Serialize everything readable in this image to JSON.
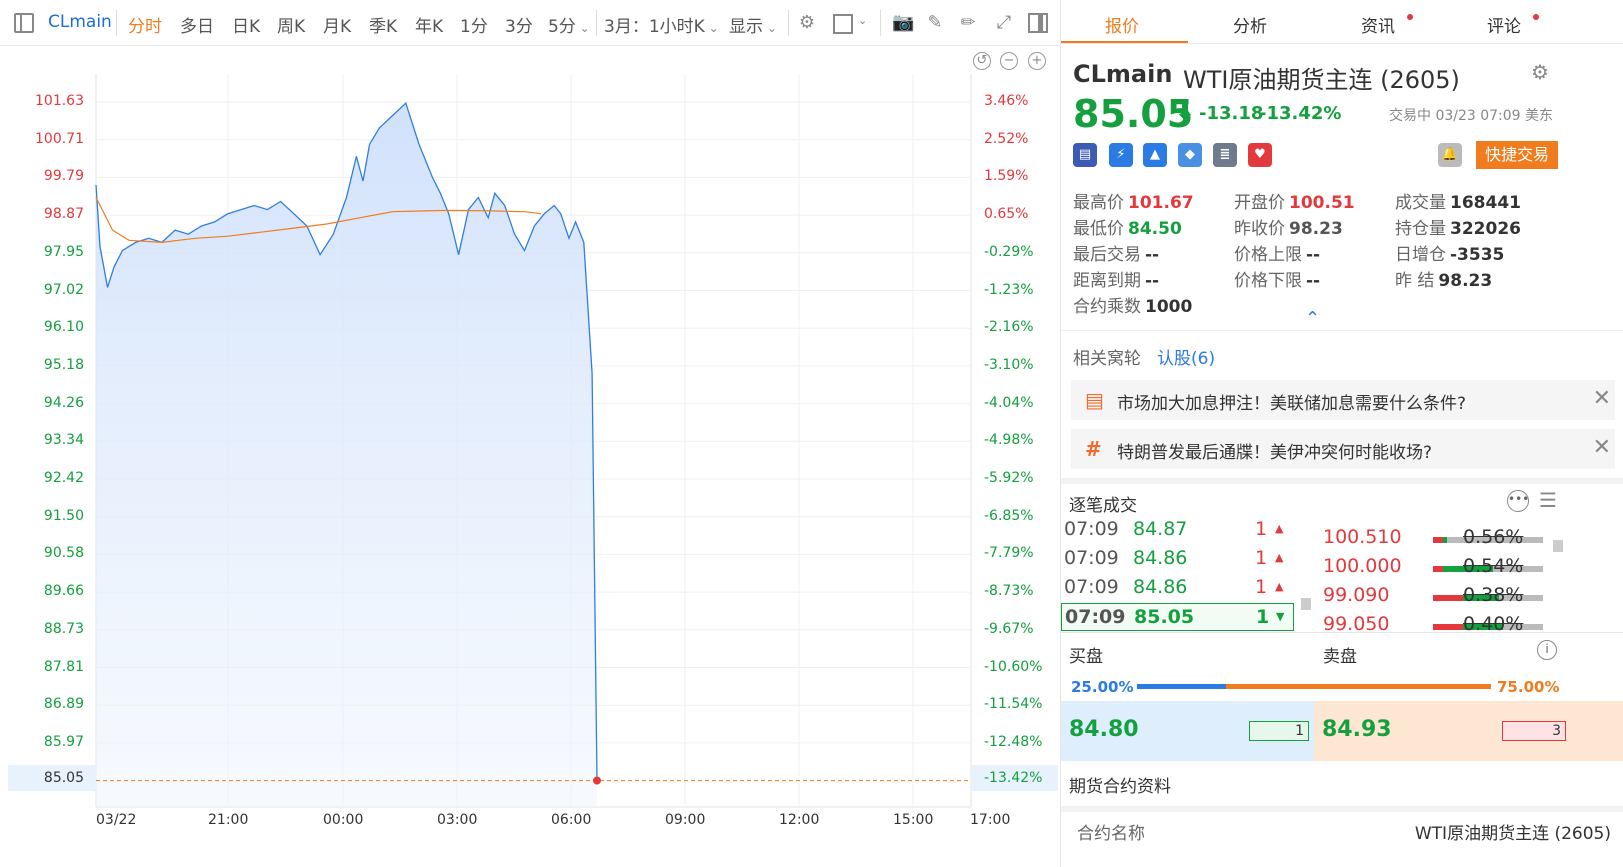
{
  "toolbar": {
    "symbol": "CLmain",
    "tabs": [
      "分时",
      "多日",
      "日K",
      "周K",
      "月K",
      "季K",
      "年K",
      "1分",
      "3分",
      "5分"
    ],
    "contract": "3月：1小时K",
    "display": "显示"
  },
  "chart_data": {
    "type": "line",
    "title": "",
    "y_labels_left": [
      "101.63",
      "100.71",
      "99.79",
      "98.87",
      "97.95",
      "97.02",
      "96.10",
      "95.18",
      "94.26",
      "93.34",
      "92.42",
      "91.50",
      "90.58",
      "89.66",
      "88.73",
      "87.81",
      "86.89",
      "85.97"
    ],
    "y_labels_right": [
      "3.46%",
      "2.52%",
      "1.59%",
      "0.65%",
      "-0.29%",
      "-1.23%",
      "-2.16%",
      "-3.10%",
      "-4.04%",
      "-4.98%",
      "-5.92%",
      "-6.85%",
      "-7.79%",
      "-8.73%",
      "-9.67%",
      "-10.60%",
      "-11.54%",
      "-12.48%"
    ],
    "current_price_label": "85.05",
    "current_pct_label": "-13.42%",
    "x_labels": [
      "03/22",
      "21:00",
      "00:00",
      "03:00",
      "06:00",
      "09:00",
      "12:00",
      "15:00",
      "17:00"
    ],
    "ylim": [
      84.6,
      102.1
    ],
    "xlim": [
      0,
      24
    ],
    "price_series": {
      "name": "价格",
      "x": [
        0,
        0.12,
        0.35,
        0.55,
        0.8,
        1.2,
        1.6,
        2.0,
        2.4,
        2.8,
        3.2,
        3.6,
        4.0,
        4.4,
        4.8,
        5.2,
        5.6,
        6.0,
        6.4,
        6.8,
        7.2,
        7.6,
        7.9,
        8.1,
        8.3,
        8.6,
        9.0,
        9.4,
        9.8,
        10.0,
        10.2,
        10.45,
        10.7,
        11.0,
        11.3,
        11.6,
        11.9,
        12.1,
        12.4,
        12.7,
        13.0,
        13.3,
        13.6,
        13.9,
        14.1,
        14.35,
        14.55,
        14.8,
        15.05,
        15.2
      ],
      "y": [
        99.6,
        98.1,
        97.1,
        97.6,
        98.0,
        98.2,
        98.3,
        98.2,
        98.5,
        98.4,
        98.6,
        98.7,
        98.9,
        99.0,
        99.1,
        99.0,
        99.2,
        98.9,
        98.6,
        97.9,
        98.4,
        99.3,
        100.3,
        99.7,
        100.6,
        101.0,
        101.3,
        101.6,
        100.6,
        100.2,
        99.8,
        99.4,
        98.9,
        97.9,
        99.0,
        99.3,
        98.8,
        99.4,
        99.1,
        98.4,
        98.0,
        98.6,
        98.9,
        99.1,
        98.9,
        98.3,
        98.7,
        98.2,
        95.0,
        85.05
      ]
    },
    "avg_series": {
      "name": "均价",
      "x": [
        0,
        0.5,
        1.0,
        2.0,
        3.0,
        4.0,
        5.0,
        6.0,
        7.0,
        8.0,
        9.0,
        10.0,
        10.5,
        11.0,
        12.0,
        13.0,
        13.5
      ],
      "y": [
        99.3,
        98.5,
        98.25,
        98.2,
        98.3,
        98.35,
        98.45,
        98.55,
        98.65,
        98.8,
        98.95,
        98.97,
        98.98,
        98.98,
        98.97,
        98.95,
        98.9
      ]
    }
  },
  "quote_tabs": [
    {
      "label": "报价",
      "dot": false
    },
    {
      "label": "分析",
      "dot": false
    },
    {
      "label": "资讯",
      "dot": true
    },
    {
      "label": "评论",
      "dot": true
    }
  ],
  "quote": {
    "symbol": "CLmain",
    "name": "WTI原油期货主连 (2605)",
    "price": "85.05",
    "change": "-13.18",
    "change_pct": "-13.42%",
    "status": "交易中 03/23 07:09 美东",
    "quick_trade": "快捷交易",
    "stats": {
      "high_label": "最高价",
      "high": "101.67",
      "open_label": "开盘价",
      "open": "100.51",
      "volume_label": "成交量",
      "volume": "168441",
      "low_label": "最低价",
      "low": "84.50",
      "prev_close_label": "昨收价",
      "prev_close": "98.23",
      "oi_label": "持仓量",
      "oi": "322026",
      "last_trade_label": "最后交易",
      "last_trade": "--",
      "upper_label": "价格上限",
      "upper": "--",
      "daily_oi_label": "日增仓",
      "daily_oi": "-3535",
      "expiry_label": "距离到期",
      "expiry": "--",
      "lower_label": "价格下限",
      "lower": "--",
      "prev_settle_label": "昨 结",
      "prev_settle": "98.23",
      "multiplier_label": "合约乘数",
      "multiplier": "1000"
    }
  },
  "related": {
    "label": "相关窝轮",
    "link": "认股(6)"
  },
  "news": [
    {
      "text": "市场加大加息押注！美联储加息需要什么条件?"
    },
    {
      "text": "特朗普发最后通牒！美伊冲突何时能收场?"
    }
  ],
  "ticks": {
    "title": "逐笔成交",
    "rows": [
      {
        "time": "07:09",
        "price": "84.87",
        "qty": "1",
        "dir": "▲"
      },
      {
        "time": "07:09",
        "price": "84.86",
        "qty": "1",
        "dir": "▲"
      },
      {
        "time": "07:09",
        "price": "84.86",
        "qty": "1",
        "dir": "▲"
      },
      {
        "time": "07:09",
        "price": "85.05",
        "qty": "1",
        "dir": "▼"
      }
    ]
  },
  "price_dist": [
    {
      "price": "100.510",
      "pct": "0.56%"
    },
    {
      "price": "100.000",
      "pct": "0.54%"
    },
    {
      "price": "99.090",
      "pct": "0.38%"
    },
    {
      "price": "99.050",
      "pct": "0.40%"
    }
  ],
  "orderbook": {
    "buy_label": "买盘",
    "sell_label": "卖盘",
    "buy_pct": "25.00%",
    "sell_pct": "75.00%",
    "buy_ratio": 0.25,
    "bid": "84.80",
    "bid_qty": "1",
    "ask": "84.93",
    "ask_qty": "3"
  },
  "contract_info": {
    "title": "期货合约资料",
    "name_label": "合约名称",
    "name_value": "WTI原油期货主连 (2605)"
  },
  "colors": {
    "up": "#e4393c",
    "down": "#15a03f",
    "accent": "#f07c1d",
    "line": "#2f7ee0",
    "avg": "#f07c1d"
  }
}
